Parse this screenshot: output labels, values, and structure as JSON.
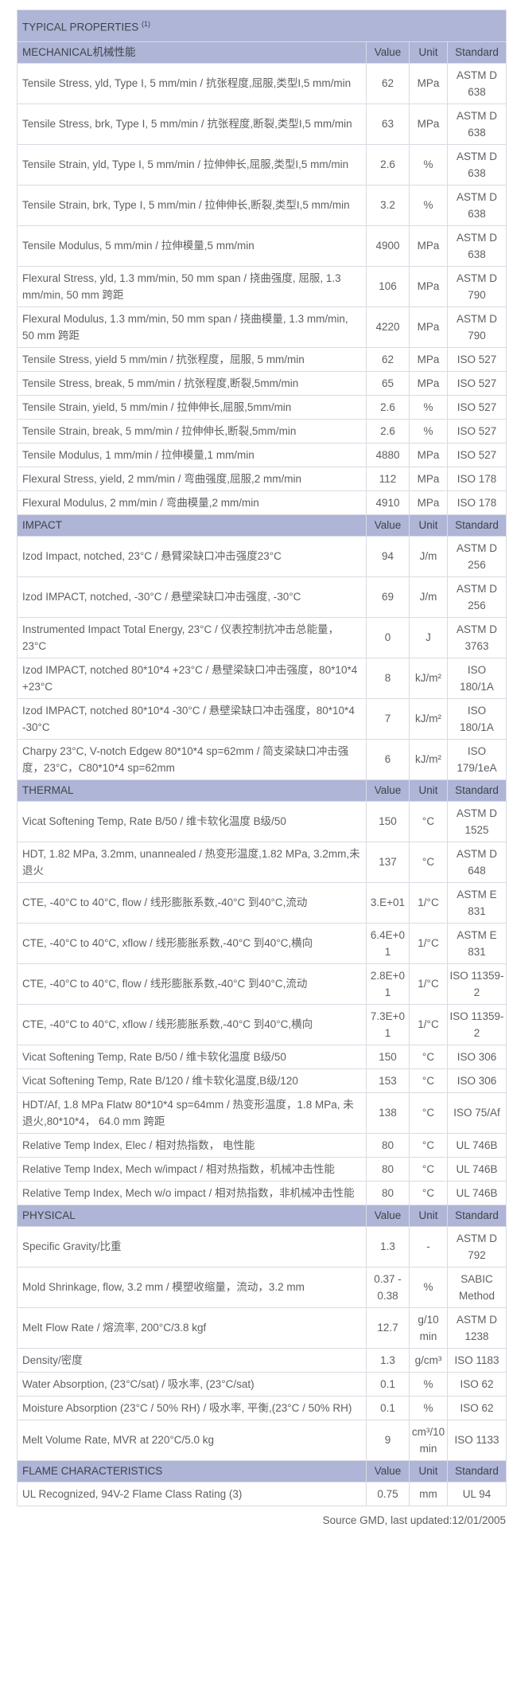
{
  "table": {
    "title": "TYPICAL PROPERTIES ",
    "title_superscript": "(1)",
    "column_headers": {
      "value": "Value",
      "unit": "Unit",
      "standard": "Standard"
    },
    "footer": "Source GMD, last updated:12/01/2005",
    "colors": {
      "header_background": "#aeb5d6",
      "header_text": "#41434b",
      "body_text": "#5e5f63",
      "inner_border": "#d9dbe4",
      "outer_border": "#3e3e40"
    },
    "sections": [
      {
        "name": "MECHANICAL机械性能",
        "rows": [
          {
            "property": "Tensile Stress, yld, Type I, 5 mm/min / 抗张程度,屈服,类型I,5 mm/min",
            "value": "62",
            "unit": "MPa",
            "standard": "ASTM D 638"
          },
          {
            "property": "Tensile Stress, brk, Type I, 5 mm/min / 抗张程度,断裂,类型I,5 mm/min",
            "value": "63",
            "unit": "MPa",
            "standard": "ASTM D 638"
          },
          {
            "property": "Tensile Strain, yld, Type I, 5 mm/min / 拉伸伸长,屈服,类型I,5 mm/min",
            "value": "2.6",
            "unit": "%",
            "standard": "ASTM D 638"
          },
          {
            "property": "Tensile Strain, brk, Type I, 5 mm/min / 拉伸伸长,断裂,类型I,5 mm/min",
            "value": "3.2",
            "unit": "%",
            "standard": "ASTM D 638"
          },
          {
            "property": "Tensile Modulus, 5 mm/min / 拉伸模量,5 mm/min",
            "value": "4900",
            "unit": "MPa",
            "standard": "ASTM D 638"
          },
          {
            "property": "Flexural Stress, yld, 1.3 mm/min, 50 mm span / 挠曲强度, 屈服, 1.3 mm/min, 50 mm 跨距",
            "value": "106",
            "unit": "MPa",
            "standard": "ASTM D 790"
          },
          {
            "property": "Flexural Modulus, 1.3 mm/min, 50 mm span / 挠曲模量, 1.3 mm/min, 50 mm 跨距",
            "value": "4220",
            "unit": "MPa",
            "standard": "ASTM D 790"
          },
          {
            "property": "Tensile Stress, yield 5 mm/min / 抗张程度，屈服, 5 mm/min",
            "value": "62",
            "unit": "MPa",
            "standard": "ISO 527"
          },
          {
            "property": "Tensile Stress, break, 5 mm/min / 抗张程度,断裂,5mm/min",
            "value": "65",
            "unit": "MPa",
            "standard": "ISO 527"
          },
          {
            "property": "Tensile Strain, yield, 5 mm/min / 拉伸伸长,屈服,5mm/min",
            "value": "2.6",
            "unit": "%",
            "standard": "ISO 527"
          },
          {
            "property": "Tensile Strain, break, 5 mm/min / 拉伸伸长,断裂,5mm/min",
            "value": "2.6",
            "unit": "%",
            "standard": "ISO 527"
          },
          {
            "property": "Tensile Modulus, 1 mm/min / 拉伸模量,1 mm/min",
            "value": "4880",
            "unit": "MPa",
            "standard": "ISO 527"
          },
          {
            "property": "Flexural Stress, yield, 2 mm/min / 弯曲强度,屈服,2 mm/min",
            "value": "112",
            "unit": "MPa",
            "standard": "ISO 178"
          },
          {
            "property": "Flexural Modulus, 2 mm/min / 弯曲模量,2 mm/min",
            "value": "4910",
            "unit": "MPa",
            "standard": "ISO 178"
          }
        ]
      },
      {
        "name": "IMPACT",
        "rows": [
          {
            "property": "Izod Impact, notched, 23°C / 悬臂梁缺口冲击强度23°C",
            "value": "94",
            "unit": "J/m",
            "standard": "ASTM D 256"
          },
          {
            "property": "Izod IMPACT, notched, -30°C / 悬壁梁缺口冲击强度, -30°C",
            "value": "69",
            "unit": "J/m",
            "standard": "ASTM D 256"
          },
          {
            "property": "Instrumented Impact Total Energy, 23°C / 仪表控制抗冲击总能量，23°C",
            "value": "0",
            "unit": "J",
            "standard": "ASTM D 3763"
          },
          {
            "property": "Izod IMPACT, notched 80*10*4 +23°C / 悬壁梁缺口冲击强度，80*10*4 +23°C",
            "value": "8",
            "unit": "kJ/m²",
            "standard": "ISO 180/1A"
          },
          {
            "property": "Izod IMPACT, notched 80*10*4 -30°C / 悬壁梁缺口冲击强度，80*10*4 -30°C",
            "value": "7",
            "unit": "kJ/m²",
            "standard": "ISO 180/1A"
          },
          {
            "property": "Charpy 23°C, V-notch Edgew 80*10*4 sp=62mm / 简支梁缺口冲击强度，23°C，C80*10*4 sp=62mm",
            "value": "6",
            "unit": "kJ/m²",
            "standard": "ISO 179/1eA"
          }
        ]
      },
      {
        "name": "THERMAL",
        "rows": [
          {
            "property": "Vicat Softening Temp, Rate B/50 / 维卡软化温度 B级/50",
            "value": "150",
            "unit": "°C",
            "standard": "ASTM D 1525"
          },
          {
            "property": "HDT, 1.82 MPa, 3.2mm, unannealed / 热变形温度,1.82 MPa, 3.2mm,未退火",
            "value": "137",
            "unit": "°C",
            "standard": "ASTM D 648"
          },
          {
            "property": "CTE, -40°C to 40°C, flow / 线形膨胀系数,-40°C 到40°C,流动",
            "value": "3.E+01",
            "unit": "1/°C",
            "standard": "ASTM E 831"
          },
          {
            "property": "CTE, -40°C to 40°C, xflow / 线形膨胀系数,-40°C 到40°C,横向",
            "value": "6.4E+01",
            "unit": "1/°C",
            "standard": "ASTM E 831"
          },
          {
            "property": "CTE, -40°C to 40°C, flow / 线形膨胀系数,-40°C 到40°C,流动",
            "value": "2.8E+01",
            "unit": "1/°C",
            "standard": "ISO 11359-2"
          },
          {
            "property": "CTE, -40°C to 40°C, xflow / 线形膨胀系数,-40°C 到40°C,横向",
            "value": "7.3E+01",
            "unit": "1/°C",
            "standard": "ISO 11359-2"
          },
          {
            "property": "Vicat Softening Temp, Rate B/50 / 维卡软化温度 B级/50",
            "value": "150",
            "unit": "°C",
            "standard": "ISO 306"
          },
          {
            "property": "Vicat Softening Temp, Rate B/120 / 维卡软化温度,B级/120",
            "value": "153",
            "unit": "°C",
            "standard": "ISO 306"
          },
          {
            "property": "HDT/Af, 1.8 MPa Flatw 80*10*4 sp=64mm / 热变形温度，1.8 MPa, 未退火,80*10*4， 64.0 mm 跨距",
            "value": "138",
            "unit": "°C",
            "standard": "ISO 75/Af"
          },
          {
            "property": "Relative Temp Index, Elec / 相对热指数， 电性能",
            "value": "80",
            "unit": "°C",
            "standard": "UL 746B"
          },
          {
            "property": "Relative Temp Index, Mech w/impact / 相对热指数，机械冲击性能",
            "value": "80",
            "unit": "°C",
            "standard": "UL 746B"
          },
          {
            "property": "Relative Temp Index, Mech w/o impact / 相对热指数，非机械冲击性能",
            "value": "80",
            "unit": "°C",
            "standard": "UL 746B"
          }
        ]
      },
      {
        "name": "PHYSICAL",
        "rows": [
          {
            "property": "Specific Gravity/比重",
            "value": "1.3",
            "unit": "-",
            "standard": "ASTM D 792"
          },
          {
            "property": "Mold Shrinkage, flow, 3.2 mm / 模塑收缩量，流动，3.2 mm",
            "value": "0.37 - 0.38",
            "unit": "%",
            "standard": "SABIC Method"
          },
          {
            "property": "Melt Flow Rate / 熔流率, 200°C/3.8 kgf",
            "value": "12.7",
            "unit": "g/10 min",
            "standard": "ASTM D 1238"
          },
          {
            "property": "Density/密度",
            "value": "1.3",
            "unit": "g/cm³",
            "standard": "ISO 1183"
          },
          {
            "property": "Water Absorption, (23°C/sat) / 吸水率, (23°C/sat)",
            "value": "0.1",
            "unit": "%",
            "standard": "ISO 62"
          },
          {
            "property": "Moisture Absorption (23°C / 50% RH) / 吸水率, 平衡,(23°C / 50% RH)",
            "value": "0.1",
            "unit": "%",
            "standard": "ISO 62"
          },
          {
            "property": "Melt Volume Rate, MVR at 220°C/5.0 kg",
            "value": "9",
            "unit": "cm³/10 min",
            "standard": "ISO 1133"
          }
        ]
      },
      {
        "name": "FLAME CHARACTERISTICS",
        "rows": [
          {
            "property": "UL Recognized, 94V-2 Flame Class Rating (3)",
            "value": "0.75",
            "unit": "mm",
            "standard": "UL 94"
          }
        ]
      }
    ]
  }
}
